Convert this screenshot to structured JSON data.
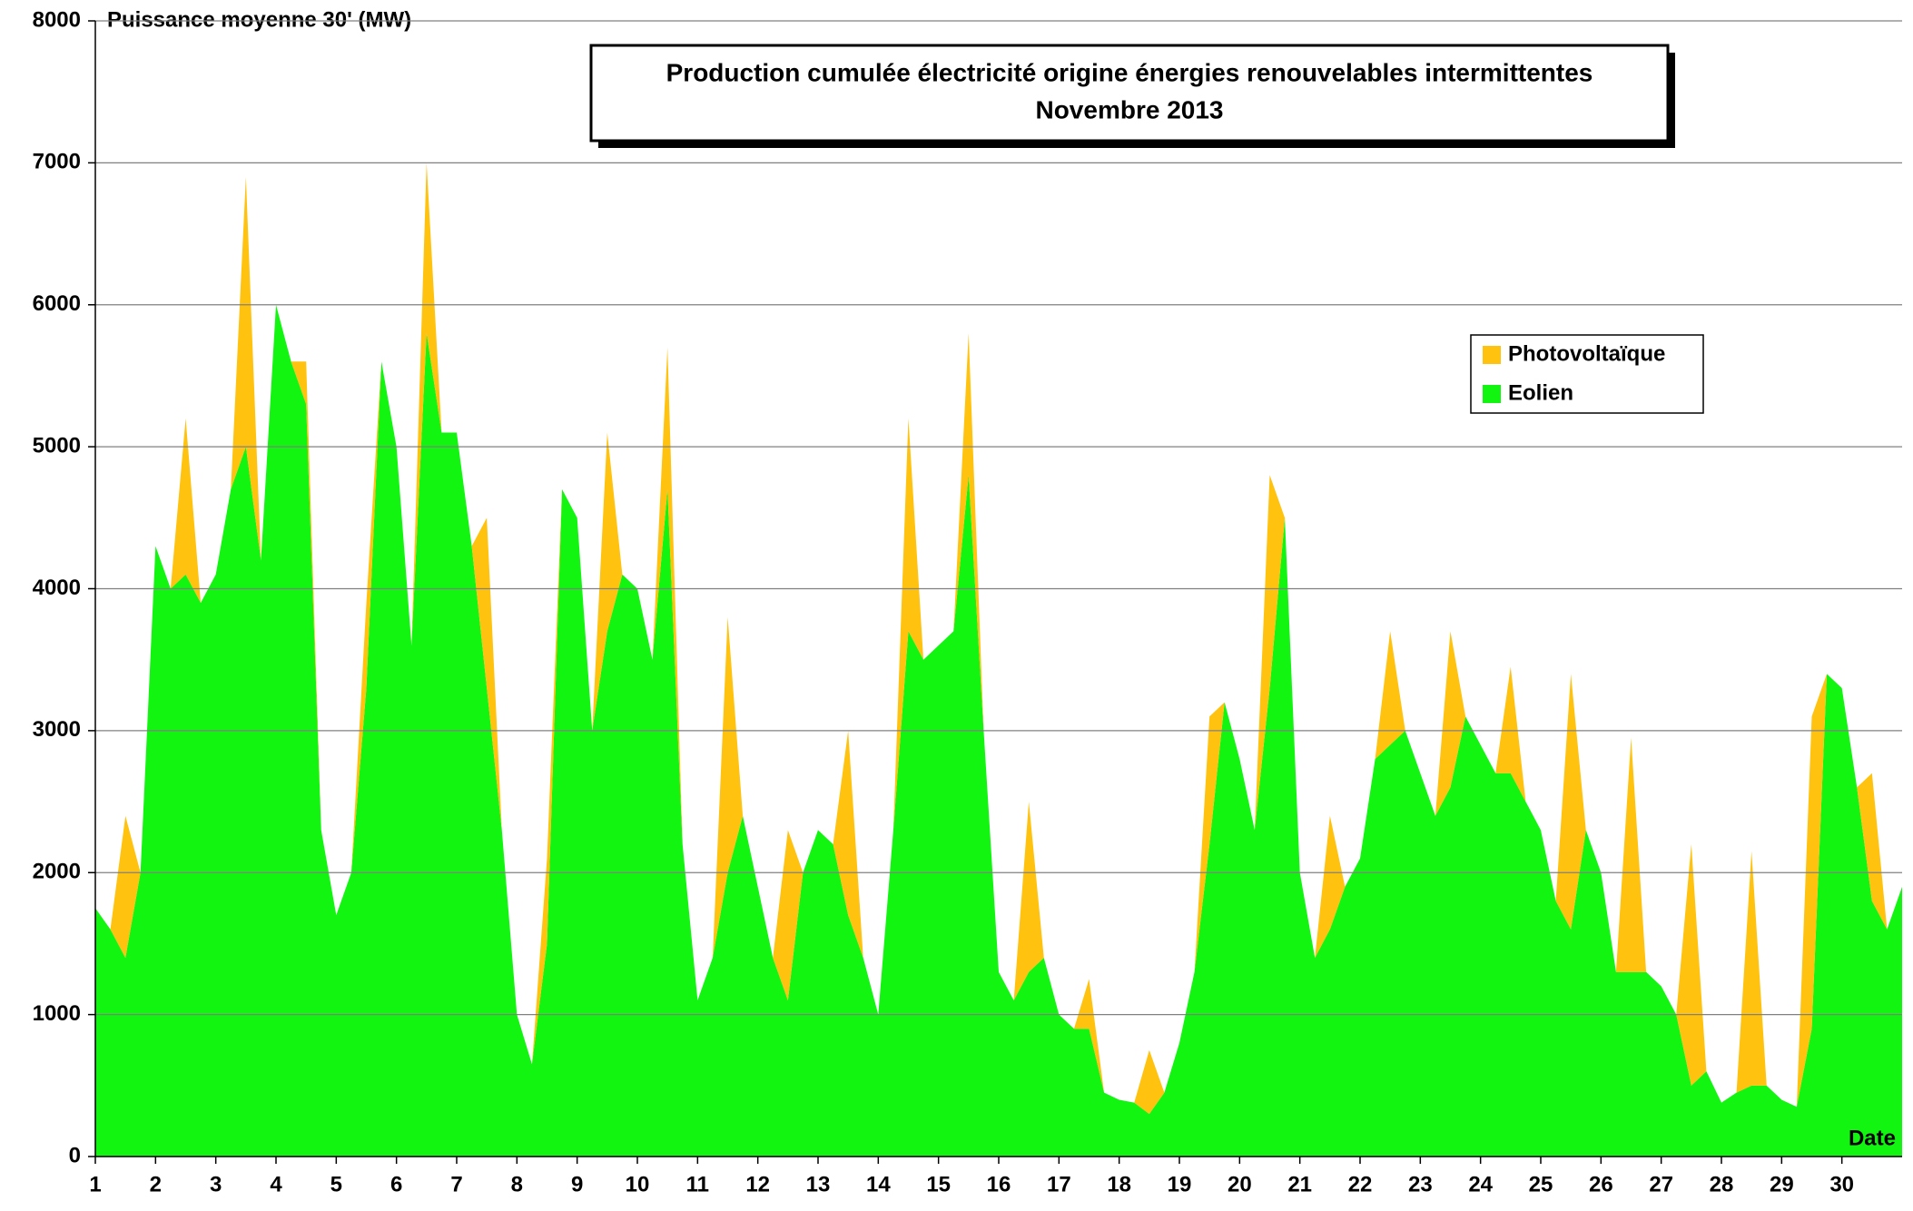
{
  "chart_data": {
    "type": "stacked_area",
    "title": "Production cumulée électricité origine énergies renouvelables intermittentes",
    "subtitle": "Novembre  2013",
    "y_label": "Puissance moyenne 30' (MW)",
    "x_label": "Date",
    "x": [
      1,
      1.25,
      1.5,
      1.75,
      2,
      2.25,
      2.5,
      2.75,
      3,
      3.25,
      3.5,
      3.75,
      4,
      4.25,
      4.5,
      4.75,
      5,
      5.25,
      5.5,
      5.75,
      6,
      6.25,
      6.5,
      6.75,
      7,
      7.25,
      7.5,
      7.75,
      8,
      8.25,
      8.5,
      8.75,
      9,
      9.25,
      9.5,
      9.75,
      10,
      10.25,
      10.5,
      10.75,
      11,
      11.25,
      11.5,
      11.75,
      12,
      12.25,
      12.5,
      12.75,
      13,
      13.25,
      13.5,
      13.75,
      14,
      14.25,
      14.5,
      14.75,
      15,
      15.25,
      15.5,
      15.75,
      16,
      16.25,
      16.5,
      16.75,
      17,
      17.25,
      17.5,
      17.75,
      18,
      18.25,
      18.5,
      18.75,
      19,
      19.25,
      19.5,
      19.75,
      20,
      20.25,
      20.5,
      20.75,
      21,
      21.25,
      21.5,
      21.75,
      22,
      22.25,
      22.5,
      22.75,
      23,
      23.25,
      23.5,
      23.75,
      24,
      24.25,
      24.5,
      24.75,
      25,
      25.25,
      25.5,
      25.75,
      26,
      26.25,
      26.5,
      26.75,
      27,
      27.25,
      27.5,
      27.75,
      28,
      28.25,
      28.5,
      28.75,
      29,
      29.25,
      29.5,
      29.75,
      30,
      30.25,
      30.5,
      30.75,
      31
    ],
    "series": [
      {
        "name": "Eolien",
        "color": "#11f511",
        "values": [
          1750,
          1600,
          1400,
          2000,
          4300,
          4000,
          4100,
          3900,
          4100,
          4700,
          5000,
          4200,
          6000,
          5600,
          5300,
          2300,
          1700,
          2000,
          3300,
          5600,
          5000,
          3600,
          5800,
          5100,
          5100,
          4300,
          3300,
          2300,
          1000,
          650,
          1500,
          4700,
          4500,
          3000,
          3700,
          4100,
          4000,
          3500,
          4700,
          2200,
          1100,
          1400,
          2000,
          2400,
          1900,
          1400,
          1100,
          2000,
          2300,
          2200,
          1700,
          1400,
          1000,
          2300,
          3700,
          3500,
          3600,
          3700,
          4800,
          3000,
          1300,
          1100,
          1300,
          1400,
          1000,
          900,
          900,
          450,
          400,
          380,
          300,
          450,
          800,
          1300,
          2200,
          3200,
          2800,
          2300,
          3300,
          4500,
          2000,
          1400,
          1600,
          1900,
          2100,
          2800,
          2900,
          3000,
          2700,
          2400,
          2600,
          3100,
          2900,
          2700,
          2700,
          2500,
          2300,
          1800,
          1600,
          2300,
          2000,
          1300,
          1300,
          1300,
          1200,
          1000,
          500,
          600,
          380,
          450,
          500,
          500,
          400,
          350,
          900,
          3400,
          3300,
          2600,
          1800,
          1600,
          1900
        ]
      },
      {
        "name": "Photovoltaïque",
        "color": "#ffc20e",
        "values": [
          0,
          0,
          1000,
          0,
          0,
          0,
          1100,
          0,
          0,
          0,
          1900,
          0,
          0,
          0,
          300,
          0,
          0,
          0,
          600,
          0,
          0,
          0,
          1200,
          0,
          0,
          0,
          1200,
          0,
          0,
          0,
          600,
          0,
          0,
          0,
          1400,
          0,
          0,
          0,
          1000,
          0,
          0,
          0,
          1800,
          0,
          0,
          0,
          1200,
          0,
          0,
          0,
          1300,
          0,
          0,
          0,
          1500,
          0,
          0,
          0,
          1000,
          0,
          0,
          0,
          1200,
          0,
          0,
          0,
          350,
          0,
          0,
          0,
          450,
          0,
          0,
          0,
          900,
          0,
          0,
          0,
          1500,
          0,
          0,
          0,
          800,
          0,
          0,
          0,
          800,
          0,
          0,
          0,
          1100,
          0,
          0,
          0,
          750,
          0,
          0,
          0,
          1800,
          0,
          0,
          0,
          1650,
          0,
          0,
          0,
          1700,
          0,
          0,
          0,
          1650,
          0,
          0,
          0,
          2200,
          0,
          0,
          0,
          900,
          0,
          0
        ]
      }
    ],
    "xlim": [
      1,
      31
    ],
    "xticks": [
      1,
      2,
      3,
      4,
      5,
      6,
      7,
      8,
      9,
      10,
      11,
      12,
      13,
      14,
      15,
      16,
      17,
      18,
      19,
      20,
      21,
      22,
      23,
      24,
      25,
      26,
      27,
      28,
      29,
      30
    ],
    "ylim": [
      0,
      8000
    ],
    "yticks": [
      0,
      1000,
      2000,
      3000,
      4000,
      5000,
      6000,
      7000,
      8000
    ],
    "grid": true,
    "legend": "upper right"
  }
}
